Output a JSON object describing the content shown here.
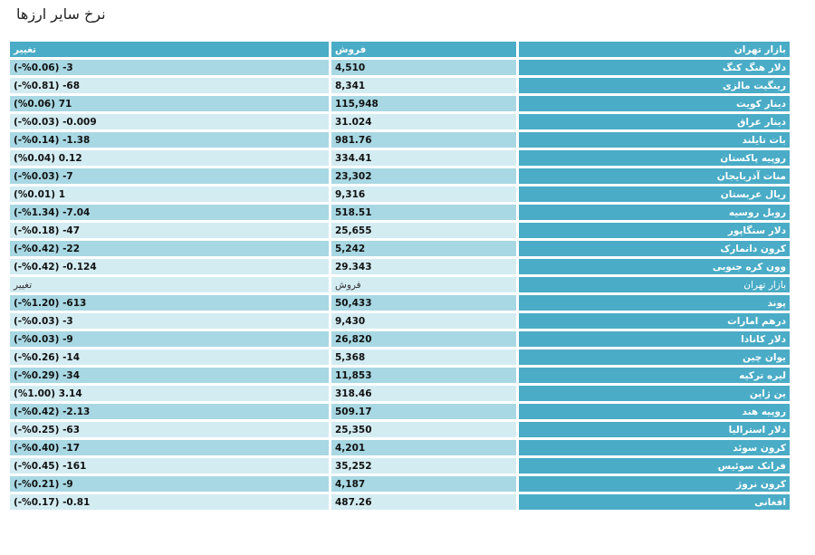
{
  "page": {
    "title": "نرخ سایر ارزها"
  },
  "header": {
    "market": "بازار تهران",
    "sell": "فروش",
    "change": "تغییر"
  },
  "rows": [
    {
      "name": "دلار هنگ کنگ",
      "sell": "4,510",
      "change": "3- (%0.06-)"
    },
    {
      "name": "رینگیت مالزی",
      "sell": "8,341",
      "change": "68- (%0.81-)"
    },
    {
      "name": "دینار کویت",
      "sell": "115,948",
      "change": "71 (%0.06)"
    },
    {
      "name": "دینار عراق",
      "sell": "31.024",
      "change": "0.009- (%0.03-)"
    },
    {
      "name": "بات تایلند",
      "sell": "981.76",
      "change": "1.38- (%0.14-)"
    },
    {
      "name": "روپیه پاکستان",
      "sell": "334.41",
      "change": "0.12 (%0.04)"
    },
    {
      "name": "منات آذربایجان",
      "sell": "23,302",
      "change": "7- (%0.03-)"
    },
    {
      "name": "ریال عربستان",
      "sell": "9,316",
      "change": "1 (%0.01)"
    },
    {
      "name": "روبل روسیه",
      "sell": "518.51",
      "change": "7.04- (%1.34-)"
    },
    {
      "name": "دلار سنگاپور",
      "sell": "25,655",
      "change": "47- (%0.18-)"
    },
    {
      "name": "کرون دانمارک",
      "sell": "5,242",
      "change": "22- (%0.42-)"
    },
    {
      "name": "وون کره جنوبی",
      "sell": "29.343",
      "change": "0.124- (%0.42-)"
    }
  ],
  "subheader": {
    "market": "بازار تهران",
    "sell": "فروش",
    "change": "تغییر"
  },
  "rows2": [
    {
      "name": "پوند",
      "sell": "50,433",
      "change": "613- (%1.20-)"
    },
    {
      "name": "درهم امارات",
      "sell": "9,430",
      "change": "3- (%0.03-)"
    },
    {
      "name": "دلار کانادا",
      "sell": "26,820",
      "change": "9- (%0.03-)"
    },
    {
      "name": "یوان چین",
      "sell": "5,368",
      "change": "14- (%0.26-)"
    },
    {
      "name": "لیره ترکیه",
      "sell": "11,853",
      "change": "34- (%0.29-)"
    },
    {
      "name": "ین ژاپن",
      "sell": "318.46",
      "change": "3.14 (%1.00)"
    },
    {
      "name": "روپیه هند",
      "sell": "509.17",
      "change": "2.13- (%0.42-)"
    },
    {
      "name": "دلار استرالیا",
      "sell": "25,350",
      "change": "63- (%0.25-)"
    },
    {
      "name": "کرون سوئد",
      "sell": "4,201",
      "change": "17- (%0.40-)"
    },
    {
      "name": "فرانک سوئیس",
      "sell": "35,252",
      "change": "161- (%0.45-)"
    },
    {
      "name": "کرون نروژ",
      "sell": "4,187",
      "change": "9- (%0.21-)"
    },
    {
      "name": "افغانی",
      "sell": "487.26",
      "change": "0.81- (%0.17-)"
    }
  ]
}
